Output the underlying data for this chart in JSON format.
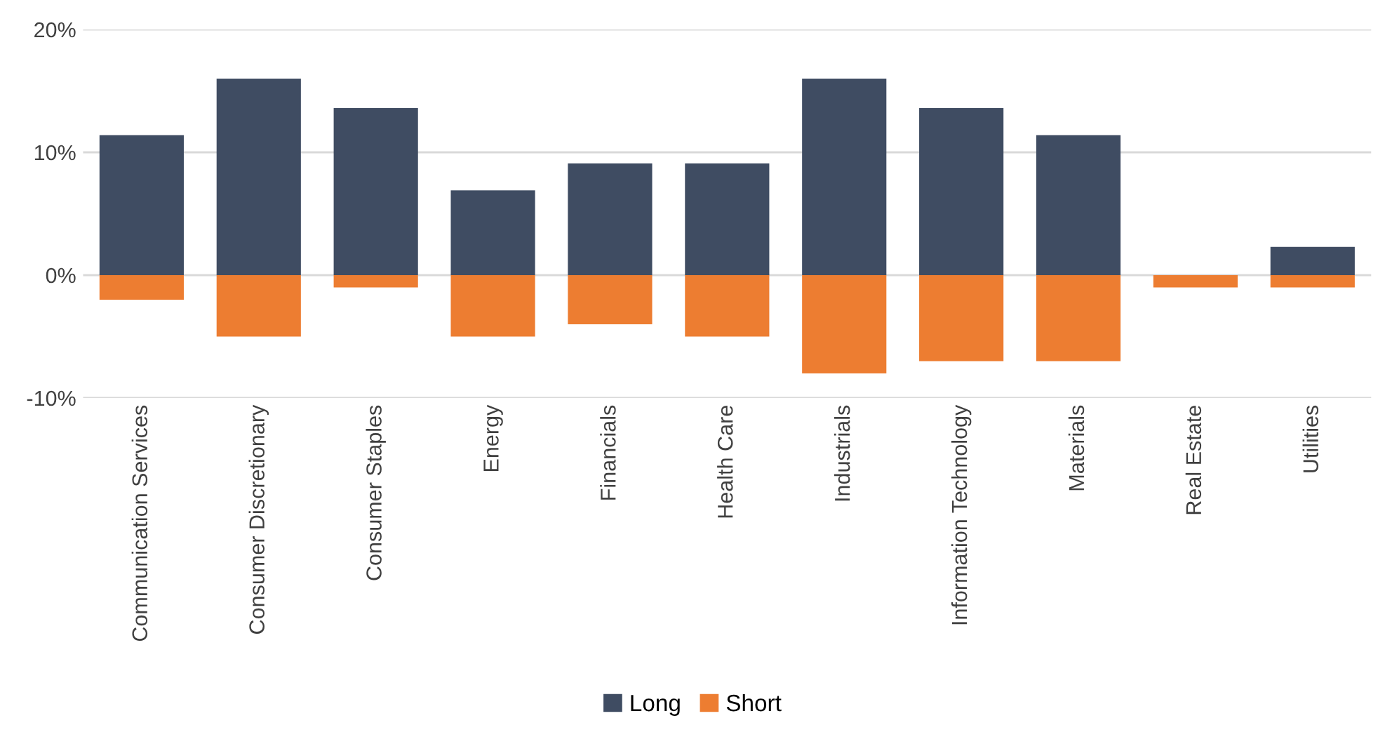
{
  "chart_data": {
    "type": "bar",
    "categories": [
      "Communication Services",
      "Consumer Discretionary",
      "Consumer Staples",
      "Energy",
      "Financials",
      "Health Care",
      "Industrials",
      "Information Technology",
      "Materials",
      "Real Estate",
      "Utilities"
    ],
    "series": [
      {
        "name": "Long",
        "color": "#3f4c62",
        "values": [
          11.4,
          16,
          13.6,
          6.9,
          9.1,
          9.1,
          16,
          13.6,
          11.4,
          0,
          2.3
        ]
      },
      {
        "name": "Short",
        "color": "#ed7d31",
        "values": [
          -2,
          -5,
          -1,
          -5,
          -4,
          -5,
          -8,
          -7,
          -7,
          -1,
          -1
        ]
      }
    ],
    "ylim": [
      -10,
      20
    ],
    "yticks": [
      {
        "value": -10,
        "label": "-10%"
      },
      {
        "value": 0,
        "label": "0%"
      },
      {
        "value": 10,
        "label": "10%"
      },
      {
        "value": 20,
        "label": "20%"
      }
    ],
    "grid": "y",
    "legend": "bottom",
    "stacked": true
  }
}
